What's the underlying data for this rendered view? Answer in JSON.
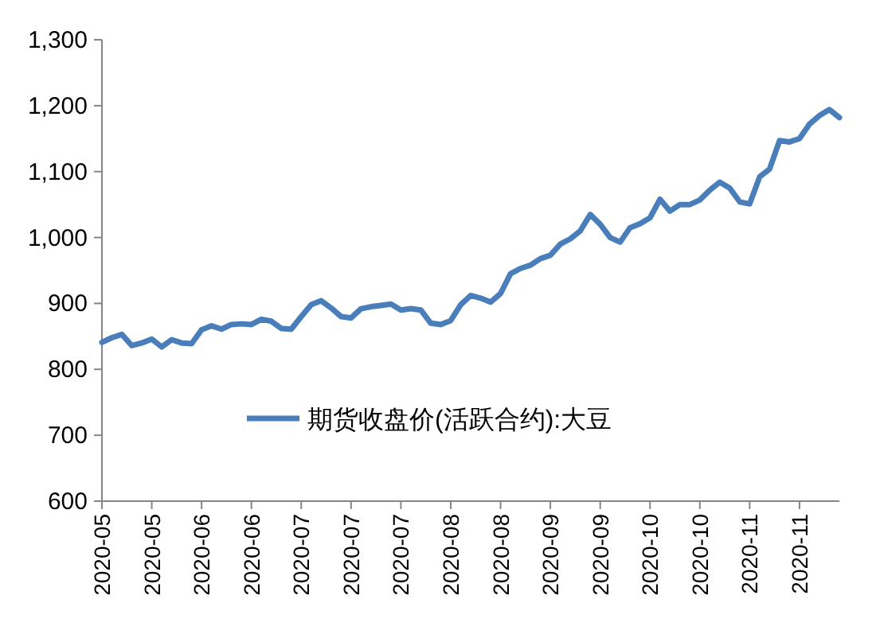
{
  "chart_data": {
    "type": "line",
    "categories": [
      "2020-05",
      null,
      null,
      null,
      null,
      "2020-05",
      null,
      null,
      null,
      null,
      "2020-06",
      null,
      null,
      null,
      null,
      "2020-06",
      null,
      null,
      null,
      null,
      "2020-07",
      null,
      null,
      null,
      null,
      "2020-07",
      null,
      null,
      null,
      null,
      "2020-07",
      null,
      null,
      null,
      null,
      "2020-08",
      null,
      null,
      null,
      null,
      "2020-08",
      null,
      null,
      null,
      null,
      "2020-09",
      null,
      null,
      null,
      null,
      "2020-09",
      null,
      null,
      null,
      null,
      "2020-10",
      null,
      null,
      null,
      null,
      "2020-10",
      null,
      null,
      null,
      null,
      "2020-11",
      null,
      null,
      null,
      null,
      "2020-11",
      null,
      null,
      null,
      null
    ],
    "series": [
      {
        "name": "期货收盘价(活跃合约):大豆",
        "color": "#4a7ebb",
        "values": [
          841,
          848,
          853,
          836,
          840,
          846,
          834,
          845,
          840,
          839,
          860,
          866,
          861,
          868,
          869,
          868,
          876,
          873,
          862,
          861,
          880,
          898,
          904,
          893,
          880,
          878,
          892,
          895,
          897,
          899,
          890,
          892,
          890,
          870,
          868,
          874,
          898,
          912,
          908,
          902,
          915,
          945,
          953,
          958,
          968,
          973,
          990,
          998,
          1010,
          1035,
          1020,
          1000,
          993,
          1015,
          1021,
          1030,
          1058,
          1040,
          1050,
          1050,
          1057,
          1072,
          1084,
          1075,
          1054,
          1051,
          1092,
          1104,
          1147,
          1145,
          1150,
          1172,
          1185,
          1194,
          1182
        ]
      }
    ],
    "ylim": [
      600,
      1300
    ],
    "yticks": [
      600,
      700,
      800,
      900,
      {
        "value": 1000,
        "label": "1,000"
      },
      {
        "value": 1100,
        "label": "1,100"
      },
      {
        "value": 1200,
        "label": "1,200"
      },
      {
        "value": 1300,
        "label": "1,300"
      }
    ],
    "legend": "bottom"
  }
}
